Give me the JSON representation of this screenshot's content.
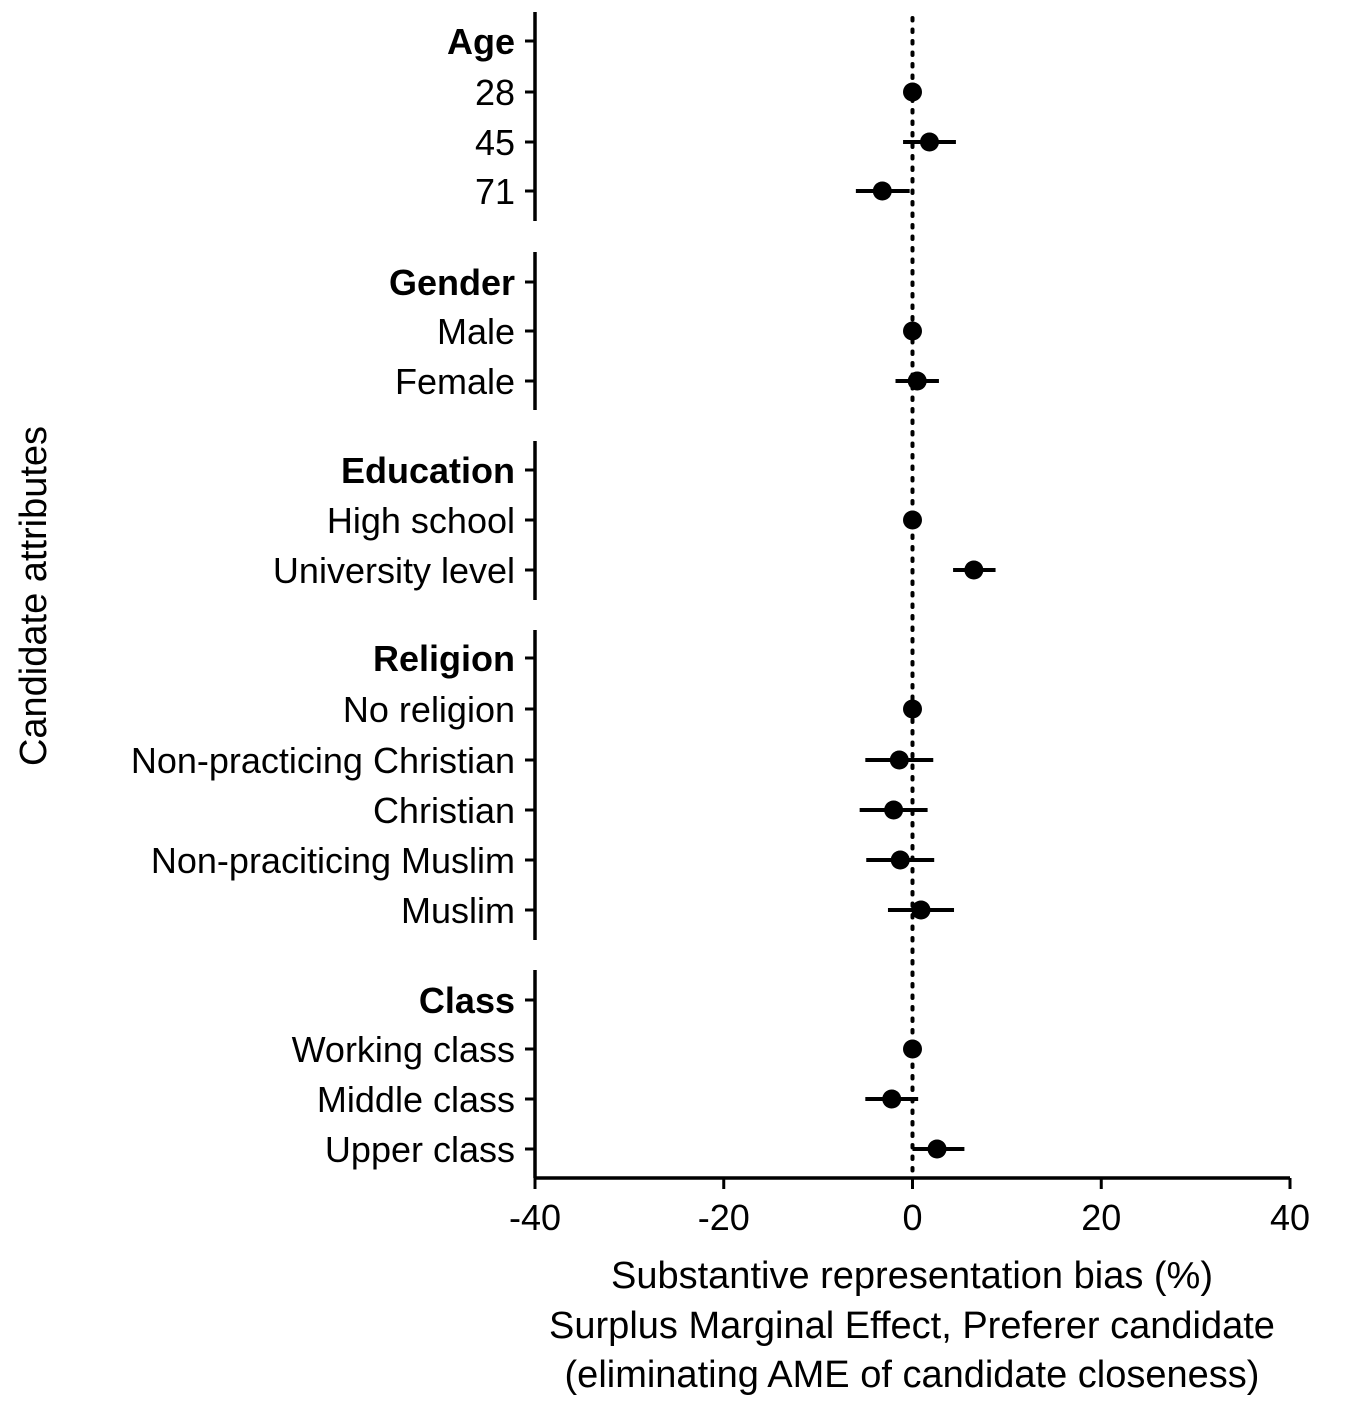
{
  "chart_data": {
    "type": "scatter",
    "subtype": "coefficient-plot-with-error-bars",
    "xlabel_lines": [
      "Substantive representation bias (%)",
      "Surplus Marginal Effect, Preferer candidate",
      "(eliminating AME of candidate closeness)"
    ],
    "ylabel": "Candidate attributes",
    "xlim": [
      -40,
      40
    ],
    "x_ticks": [
      -40,
      -20,
      0,
      20,
      40
    ],
    "x_tick_labels": [
      "-40",
      "-20",
      "0",
      "20",
      "40"
    ],
    "reference_line": {
      "x": 0,
      "style": "dotted"
    },
    "groups": [
      {
        "title": "Age",
        "levels": [
          {
            "label": "28",
            "estimate": 0,
            "lower": 0,
            "upper": 0
          },
          {
            "label": "45",
            "estimate": 1.8,
            "lower": -1.0,
            "upper": 4.6
          },
          {
            "label": "71",
            "estimate": -3.2,
            "lower": -6.0,
            "upper": -0.3
          }
        ]
      },
      {
        "title": "Gender",
        "levels": [
          {
            "label": "Male",
            "estimate": 0,
            "lower": 0,
            "upper": 0
          },
          {
            "label": "Female",
            "estimate": 0.5,
            "lower": -1.8,
            "upper": 2.8
          }
        ]
      },
      {
        "title": "Education",
        "levels": [
          {
            "label": "High school",
            "estimate": 0,
            "lower": 0,
            "upper": 0
          },
          {
            "label": "University level",
            "estimate": 6.5,
            "lower": 4.3,
            "upper": 8.8
          }
        ]
      },
      {
        "title": "Religion",
        "levels": [
          {
            "label": "No religion",
            "estimate": 0,
            "lower": 0,
            "upper": 0
          },
          {
            "label": "Non-practicing Christian",
            "estimate": -1.4,
            "lower": -5.0,
            "upper": 2.2
          },
          {
            "label": "Christian",
            "estimate": -2.0,
            "lower": -5.6,
            "upper": 1.6
          },
          {
            "label": "Non-praciticing Muslim",
            "estimate": -1.3,
            "lower": -4.9,
            "upper": 2.3
          },
          {
            "label": "Muslim",
            "estimate": 0.9,
            "lower": -2.6,
            "upper": 4.4
          }
        ]
      },
      {
        "title": "Class",
        "levels": [
          {
            "label": "Working class",
            "estimate": 0,
            "lower": 0,
            "upper": 0
          },
          {
            "label": "Middle class",
            "estimate": -2.2,
            "lower": -5.0,
            "upper": 0.6
          },
          {
            "label": "Upper class",
            "estimate": 2.6,
            "lower": 0.0,
            "upper": 5.5
          }
        ]
      }
    ],
    "colors": {
      "points": "#000000",
      "axes": "#000000"
    }
  }
}
